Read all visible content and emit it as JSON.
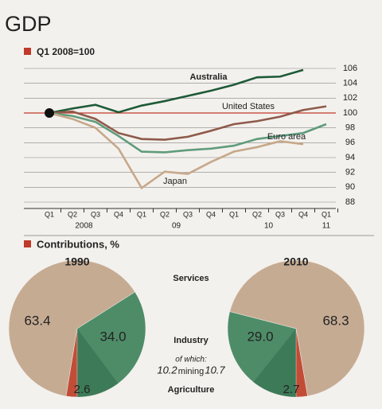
{
  "chart_data": [
    {
      "type": "line",
      "title": "GDP",
      "subtitle": "Q1 2008=100",
      "categories": [
        "Q1",
        "Q2",
        "Q3",
        "Q4",
        "Q1",
        "Q2",
        "Q3",
        "Q4",
        "Q1",
        "Q2",
        "Q3",
        "Q4",
        "Q1"
      ],
      "year_labels": [
        "2008",
        "09",
        "10",
        "11"
      ],
      "ylim": [
        88,
        107
      ],
      "yticks": [
        88,
        90,
        92,
        94,
        96,
        98,
        100,
        102,
        104,
        106
      ],
      "baseline": 100,
      "baseline_color": "#c0392b",
      "grid": true,
      "series": [
        {
          "name": "Australia",
          "color": "#1e5a38",
          "values": [
            100,
            100.6,
            101.1,
            100.1,
            101.0,
            101.6,
            102.3,
            103.0,
            103.8,
            104.8,
            104.9,
            105.8,
            null
          ]
        },
        {
          "name": "United States",
          "color": "#8e5a4a",
          "values": [
            100,
            100.2,
            99.2,
            97.3,
            96.5,
            96.4,
            96.8,
            97.6,
            98.5,
            98.9,
            99.5,
            100.4,
            100.9
          ]
        },
        {
          "name": "Euro area",
          "color": "#5f9c7c",
          "values": [
            100,
            99.6,
            98.8,
            96.9,
            94.8,
            94.7,
            95.0,
            95.2,
            95.6,
            96.5,
            96.9,
            97.3,
            98.5
          ]
        },
        {
          "name": "Japan",
          "color": "#c6a88a",
          "values": [
            100,
            99.2,
            98.0,
            95.2,
            89.9,
            92.1,
            91.8,
            93.4,
            94.8,
            95.4,
            96.2,
            95.8,
            null
          ]
        }
      ]
    },
    {
      "type": "pie",
      "title": "Contributions, %",
      "categories": [
        "Services",
        "Industry",
        "Agriculture"
      ],
      "colors": [
        "#c6ab93",
        "#4e8c68",
        "#c24d37"
      ],
      "sub_category": "mining",
      "sub_prefix": "of which:",
      "sub_color": "#2f6b4a",
      "pies": [
        {
          "title": "1990",
          "values": [
            63.4,
            34.0,
            2.6
          ],
          "value_labels": [
            "63.4",
            "34.0",
            "2.6"
          ],
          "sub_value": 10.2,
          "direction": "clockwise"
        },
        {
          "title": "2010",
          "values": [
            68.3,
            29.0,
            2.7
          ],
          "value_labels": [
            "68.3",
            "29.0",
            "2.7"
          ],
          "sub_value": 10.7,
          "direction": "counterclockwise"
        }
      ]
    }
  ]
}
